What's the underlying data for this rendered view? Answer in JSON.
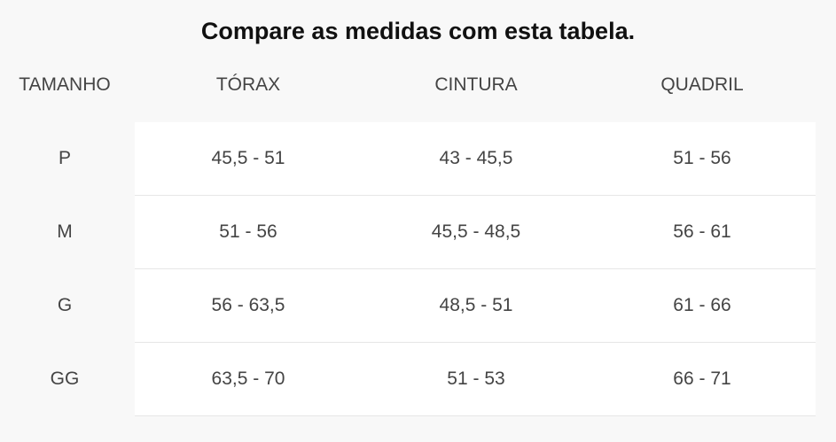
{
  "header": {
    "title": "Compare as medidas com esta tabela."
  },
  "table": {
    "columns": [
      "TAMANHO",
      "TÓRAX",
      "CINTURA",
      "QUADRIL"
    ],
    "rows": [
      [
        "P",
        "45,5 - 51",
        "43 - 45,5",
        "51 - 56"
      ],
      [
        "M",
        "51 - 56",
        "45,5 - 48,5",
        "56 - 61"
      ],
      [
        "G",
        "56 - 63,5",
        "48,5 - 51",
        "61 - 66"
      ],
      [
        "GG",
        "63,5 - 70",
        "51 - 53",
        "66 - 71"
      ]
    ]
  }
}
